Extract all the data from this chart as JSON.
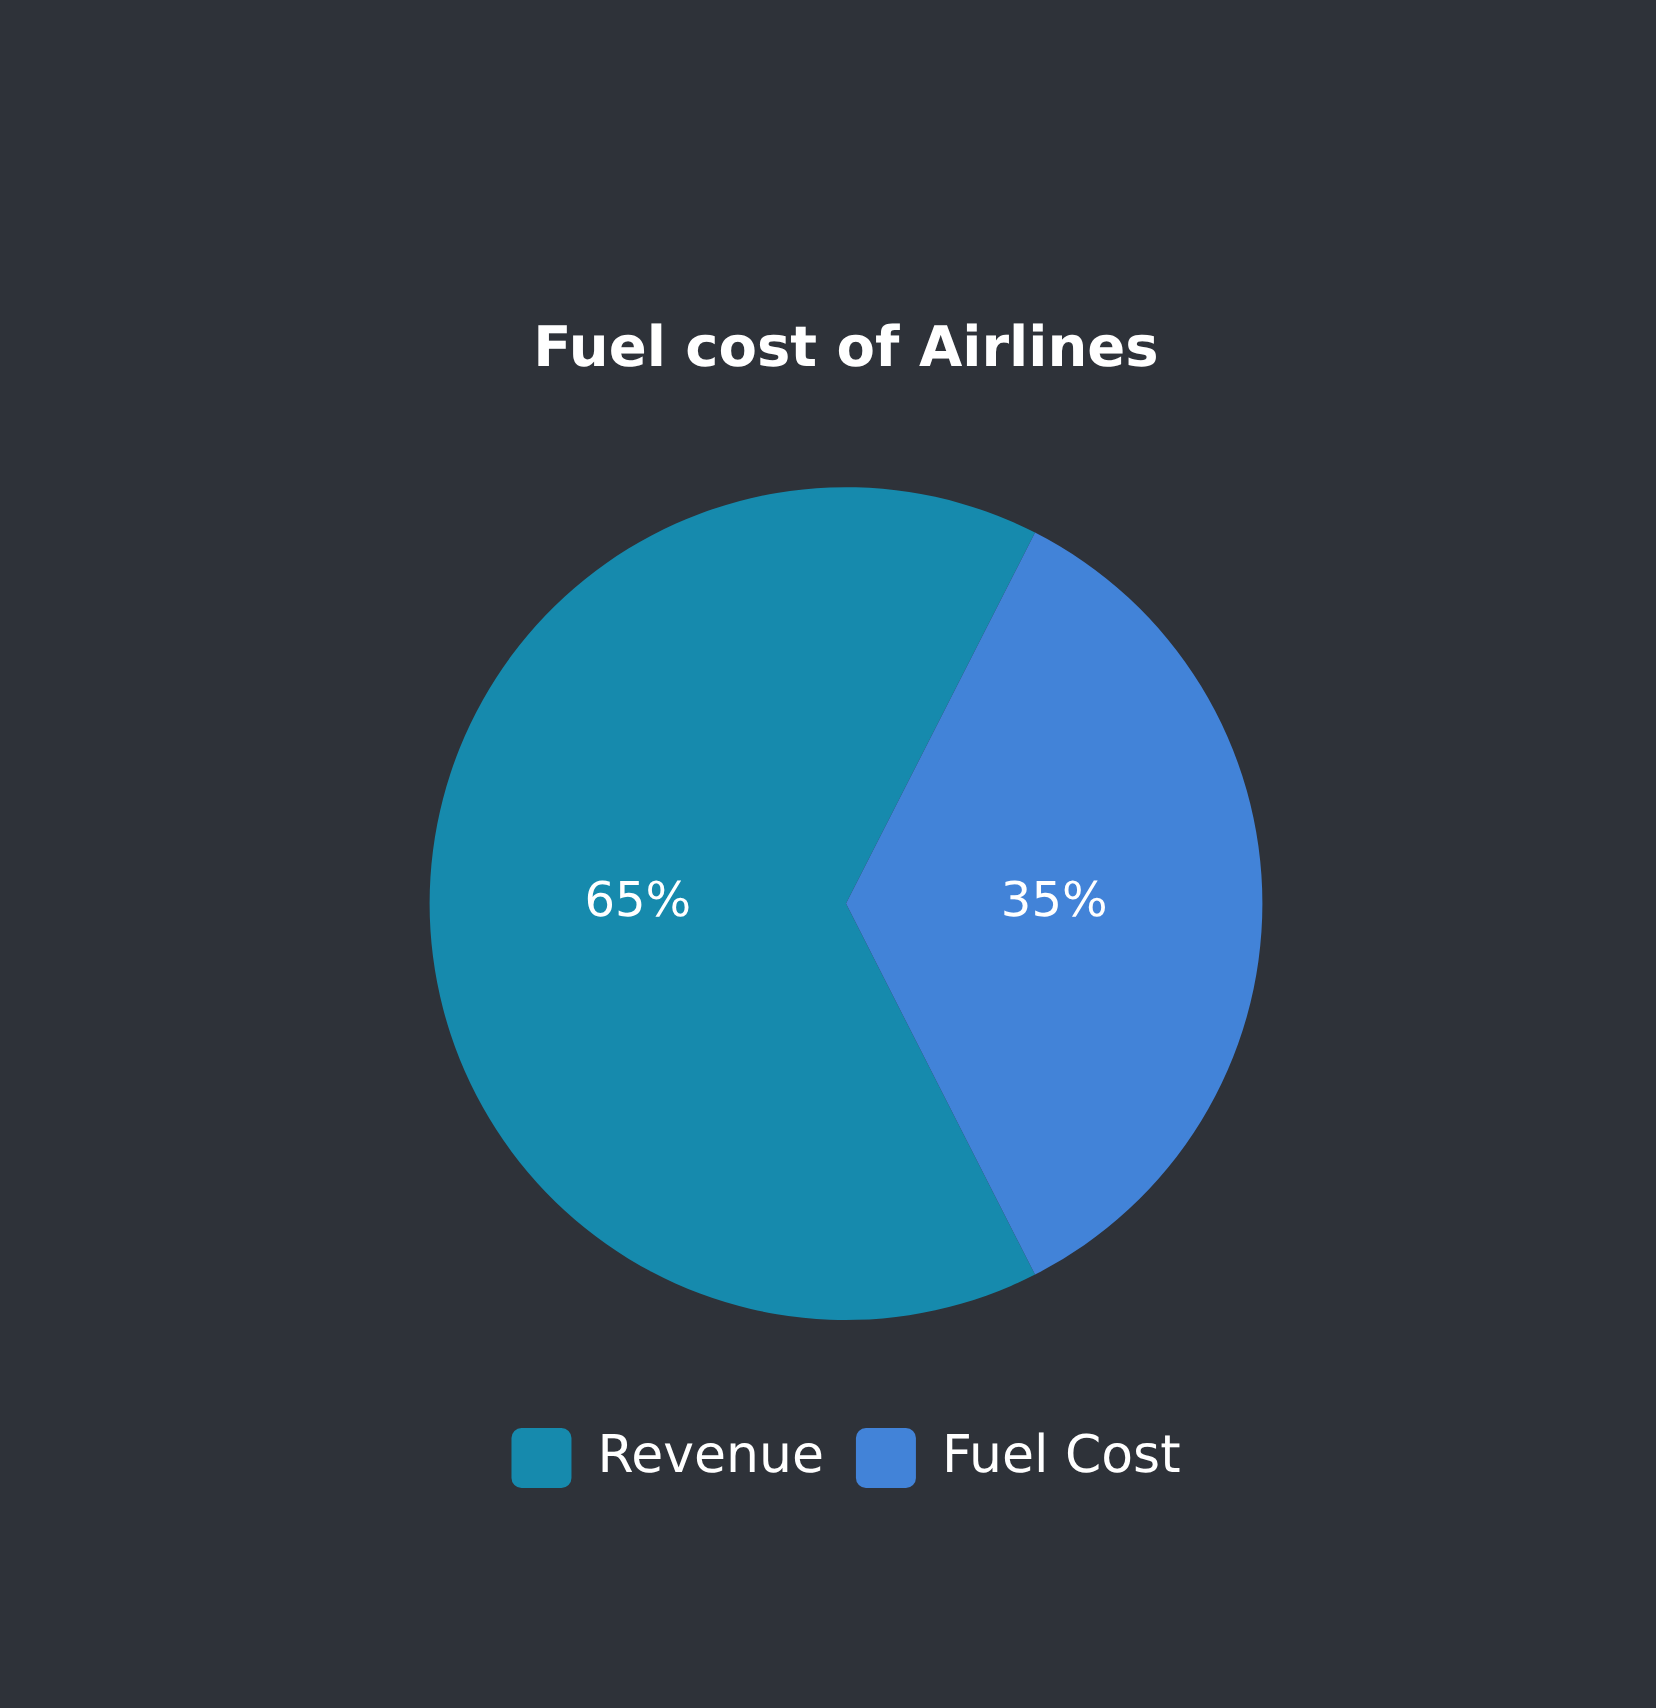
{
  "chart_data": {
    "type": "pie",
    "title": "Fuel cost of Airlines",
    "categories": [
      "Revenue",
      "Fuel Cost"
    ],
    "values": [
      65,
      35
    ],
    "colors": [
      "#168aad",
      "#4283d8"
    ],
    "value_labels": [
      "65%",
      "35%"
    ],
    "legend": "bottom"
  }
}
